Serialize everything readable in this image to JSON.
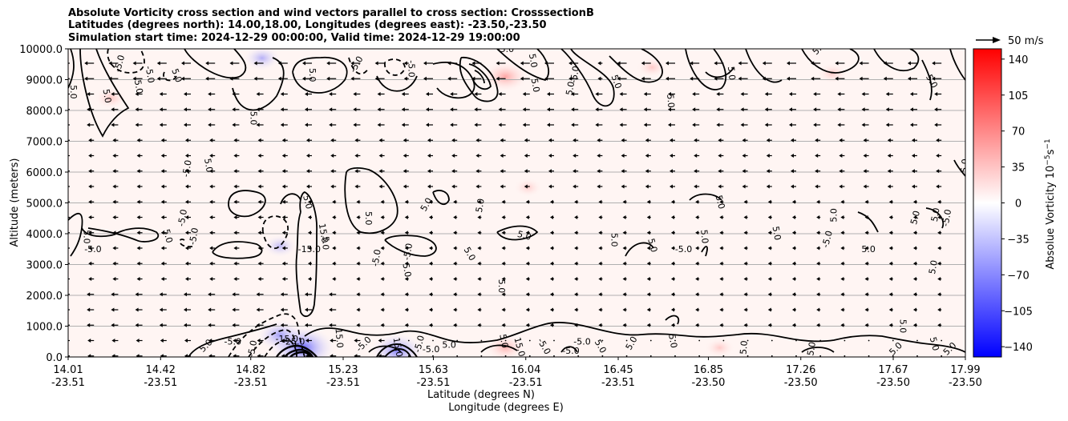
{
  "titles": {
    "line1": "Absolute Vorticity cross section and wind vectors parallel to cross section: CrosssectionB",
    "line2": "Latitudes (degrees north): 14.00,18.00, Longitudes (degrees east): -23.50,-23.50",
    "line3": "Simulation start time: 2024-12-29 00:00:00, Valid time: 2024-12-29 19:00:00"
  },
  "chart_data": {
    "type": "heatmap",
    "title": "Absolute Vorticity cross section and wind vectors parallel to cross section: CrosssectionB",
    "ylabel": "Altitude (meters)",
    "xlabel_lat": "Latitude (degrees N)",
    "xlabel_lon": "Longitude (degrees E)",
    "ylim": [
      0,
      10000
    ],
    "yticks": [
      "0.0",
      "1000.0",
      "2000.0",
      "3000.0",
      "4000.0",
      "5000.0",
      "6000.0",
      "7000.0",
      "8000.0",
      "9000.0",
      "10000.0"
    ],
    "xticks": [
      {
        "lat": "14.01",
        "lon": "-23.51"
      },
      {
        "lat": "14.42",
        "lon": "-23.51"
      },
      {
        "lat": "14.82",
        "lon": "-23.51"
      },
      {
        "lat": "15.23",
        "lon": "-23.51"
      },
      {
        "lat": "15.63",
        "lon": "-23.51"
      },
      {
        "lat": "16.04",
        "lon": "-23.51"
      },
      {
        "lat": "16.45",
        "lon": "-23.51"
      },
      {
        "lat": "16.85",
        "lon": "-23.50"
      },
      {
        "lat": "17.26",
        "lon": "-23.50"
      },
      {
        "lat": "17.67",
        "lon": "-23.50"
      },
      {
        "lat": "17.99",
        "lon": "-23.50"
      }
    ],
    "colorbar": {
      "label": "Absolue Vorticity 10",
      "label_exp1": "−5",
      "label_mid": "s",
      "label_exp2": "−1",
      "ticks": [
        "140",
        "105",
        "70",
        "35",
        "0",
        "−35",
        "−70",
        "−105",
        "−140"
      ],
      "range": [
        -150,
        150
      ],
      "colormap": "bwr"
    },
    "quiver_key": {
      "label": "50 m/s"
    },
    "contour_labels": [
      {
        "text": "5.0",
        "x": 14.02,
        "y": 8600,
        "rot": 90
      },
      {
        "text": "5.0",
        "x": 14.17,
        "y": 8450,
        "rot": 80
      },
      {
        "text": "-5.0",
        "x": 14.25,
        "y": 9500,
        "rot": -75
      },
      {
        "text": "-5.0",
        "x": 14.36,
        "y": 9150,
        "rot": 80
      },
      {
        "text": "5.0",
        "x": 14.31,
        "y": 8750,
        "rot": 80
      },
      {
        "text": "5.0",
        "x": 14.48,
        "y": 9100,
        "rot": 70
      },
      {
        "text": "5.0",
        "x": 14.82,
        "y": 7750,
        "rot": 90
      },
      {
        "text": "5.0",
        "x": 15.08,
        "y": 9150,
        "rot": 90
      },
      {
        "text": "-5.0",
        "x": 15.3,
        "y": 9450,
        "rot": -60
      },
      {
        "text": "-5.0",
        "x": 15.52,
        "y": 9350,
        "rot": 90
      },
      {
        "text": "-5.0",
        "x": 15.95,
        "y": 9900,
        "rot": 0
      },
      {
        "text": "5.0",
        "x": 16.06,
        "y": 9600,
        "rot": 80
      },
      {
        "text": "5.0",
        "x": 16.07,
        "y": 8800,
        "rot": 80
      },
      {
        "text": "-5.0",
        "x": 16.27,
        "y": 9150,
        "rot": -80
      },
      {
        "text": "5.0",
        "x": 16.25,
        "y": 8700,
        "rot": -80
      },
      {
        "text": "5.0",
        "x": 16.43,
        "y": 8900,
        "rot": 70
      },
      {
        "text": "5.0",
        "x": 16.67,
        "y": 8300,
        "rot": 85
      },
      {
        "text": "5.0",
        "x": 16.94,
        "y": 9200,
        "rot": 85
      },
      {
        "text": "5.0",
        "x": 17.35,
        "y": 9950,
        "rot": -45
      },
      {
        "text": "5.0",
        "x": 17.83,
        "y": 8900,
        "rot": 60
      },
      {
        "text": "-5.0",
        "x": 14.55,
        "y": 6100,
        "rot": -80
      },
      {
        "text": "5.0",
        "x": 14.62,
        "y": 6200,
        "rot": 80
      },
      {
        "text": "5.0",
        "x": 15.06,
        "y": 5000,
        "rot": 75
      },
      {
        "text": "-5.0",
        "x": 14.53,
        "y": 4500,
        "rot": -80
      },
      {
        "text": "5.0",
        "x": 14.44,
        "y": 3900,
        "rot": 75
      },
      {
        "text": "5.0",
        "x": 14.08,
        "y": 3900,
        "rot": 90
      },
      {
        "text": "-5.0",
        "x": 14.12,
        "y": 3400,
        "rot": 0
      },
      {
        "text": "-5.0",
        "x": 14.58,
        "y": 3900,
        "rot": -80
      },
      {
        "text": "-15.0",
        "x": 15.08,
        "y": 3400,
        "rot": 0
      },
      {
        "text": "15.0",
        "x": 15.13,
        "y": 4000,
        "rot": 80
      },
      {
        "text": "5.0",
        "x": 15.14,
        "y": 3700,
        "rot": 90
      },
      {
        "text": "5.0",
        "x": 15.33,
        "y": 4500,
        "rot": 90
      },
      {
        "text": "5.0",
        "x": 15.61,
        "y": 4900,
        "rot": -60
      },
      {
        "text": "-5.0",
        "x": 15.39,
        "y": 3200,
        "rot": -80
      },
      {
        "text": "-5.0",
        "x": 15.53,
        "y": 3400,
        "rot": -80
      },
      {
        "text": "5.0",
        "x": 15.5,
        "y": 2800,
        "rot": 80
      },
      {
        "text": "5.0",
        "x": 15.78,
        "y": 3300,
        "rot": 60
      },
      {
        "text": "5.0",
        "x": 15.85,
        "y": 4900,
        "rot": -80
      },
      {
        "text": "5.0",
        "x": 16.03,
        "y": 3850,
        "rot": 15
      },
      {
        "text": "5.0",
        "x": 15.92,
        "y": 2300,
        "rot": 90
      },
      {
        "text": "5.0",
        "x": 16.42,
        "y": 3800,
        "rot": 90
      },
      {
        "text": "5.0",
        "x": 16.59,
        "y": 3600,
        "rot": 75
      },
      {
        "text": "-5.0",
        "x": 16.74,
        "y": 3400,
        "rot": 0
      },
      {
        "text": "5.0",
        "x": 16.82,
        "y": 3900,
        "rot": 85
      },
      {
        "text": "5.0",
        "x": 16.89,
        "y": 5000,
        "rot": 75
      },
      {
        "text": "5.0",
        "x": 17.14,
        "y": 4000,
        "rot": 80
      },
      {
        "text": "5.0",
        "x": 17.42,
        "y": 4600,
        "rot": -90
      },
      {
        "text": "-5.0",
        "x": 17.39,
        "y": 3800,
        "rot": -75
      },
      {
        "text": "5.0",
        "x": 17.56,
        "y": 3400,
        "rot": 0
      },
      {
        "text": "5.0",
        "x": 17.86,
        "y": 2900,
        "rot": -80
      },
      {
        "text": "5.0",
        "x": 17.87,
        "y": 4600,
        "rot": -80
      },
      {
        "text": "5.0",
        "x": 17.78,
        "y": 4500,
        "rot": -75
      },
      {
        "text": "-5.0",
        "x": 17.92,
        "y": 4500,
        "rot": -80
      },
      {
        "text": "5.0",
        "x": 18.0,
        "y": 6200,
        "rot": -85
      },
      {
        "text": "5.0",
        "x": 14.63,
        "y": 300,
        "rot": -45
      },
      {
        "text": "-5.0",
        "x": 14.74,
        "y": 400,
        "rot": 0
      },
      {
        "text": "-5.0",
        "x": 14.84,
        "y": 250,
        "rot": -80
      },
      {
        "text": "-15.0",
        "x": 14.98,
        "y": 500,
        "rot": 0
      },
      {
        "text": "-25.0",
        "x": 15.01,
        "y": 400,
        "rot": 0
      },
      {
        "text": "15.0",
        "x": 15.2,
        "y": 600,
        "rot": 85
      },
      {
        "text": "-5.0",
        "x": 15.33,
        "y": 350,
        "rot": -45
      },
      {
        "text": "15.0",
        "x": 15.46,
        "y": 300,
        "rot": 80
      },
      {
        "text": "-5.0",
        "x": 15.58,
        "y": 400,
        "rot": -75
      },
      {
        "text": "-5.0",
        "x": 15.62,
        "y": 150,
        "rot": 0
      },
      {
        "text": "5.0",
        "x": 15.7,
        "y": 300,
        "rot": 0
      },
      {
        "text": "5.0",
        "x": 15.93,
        "y": 500,
        "rot": 80
      },
      {
        "text": "15.0",
        "x": 16.0,
        "y": 300,
        "rot": 75
      },
      {
        "text": "-5.0",
        "x": 16.11,
        "y": 300,
        "rot": 60
      },
      {
        "text": "-5.0",
        "x": 16.24,
        "y": 100,
        "rot": 0
      },
      {
        "text": "5.0",
        "x": 16.36,
        "y": 300,
        "rot": 60
      },
      {
        "text": "-5.0",
        "x": 16.29,
        "y": 400,
        "rot": 0
      },
      {
        "text": "5.0",
        "x": 16.52,
        "y": 400,
        "rot": -60
      },
      {
        "text": "5.0",
        "x": 16.68,
        "y": 500,
        "rot": 80
      },
      {
        "text": "5.0",
        "x": 17.02,
        "y": 300,
        "rot": -85
      },
      {
        "text": "5.0",
        "x": 17.32,
        "y": 250,
        "rot": -80
      },
      {
        "text": "5.0",
        "x": 17.7,
        "y": 1000,
        "rot": 90
      },
      {
        "text": "5.0",
        "x": 17.69,
        "y": 200,
        "rot": -45
      },
      {
        "text": "5.0",
        "x": 17.84,
        "y": 400,
        "rot": 75
      },
      {
        "text": "5.0",
        "x": 17.93,
        "y": 200,
        "rot": -45
      }
    ],
    "vorticity_features": [
      {
        "x": 14.87,
        "y": 9700,
        "value": -30
      },
      {
        "x": 14.95,
        "y": 3600,
        "value": -20
      },
      {
        "x": 14.95,
        "y": 700,
        "value": -60
      },
      {
        "x": 15.05,
        "y": 300,
        "value": -120
      },
      {
        "x": 15.47,
        "y": 200,
        "value": -80
      },
      {
        "x": 15.95,
        "y": 9100,
        "value": 60
      },
      {
        "x": 15.95,
        "y": 300,
        "value": 40
      },
      {
        "x": 14.2,
        "y": 8400,
        "value": 15
      },
      {
        "x": 16.6,
        "y": 9400,
        "value": 10
      },
      {
        "x": 17.4,
        "y": 9200,
        "value": 10
      },
      {
        "x": 16.05,
        "y": 5500,
        "value": 3
      },
      {
        "x": 16.9,
        "y": 300,
        "value": 8
      }
    ]
  }
}
